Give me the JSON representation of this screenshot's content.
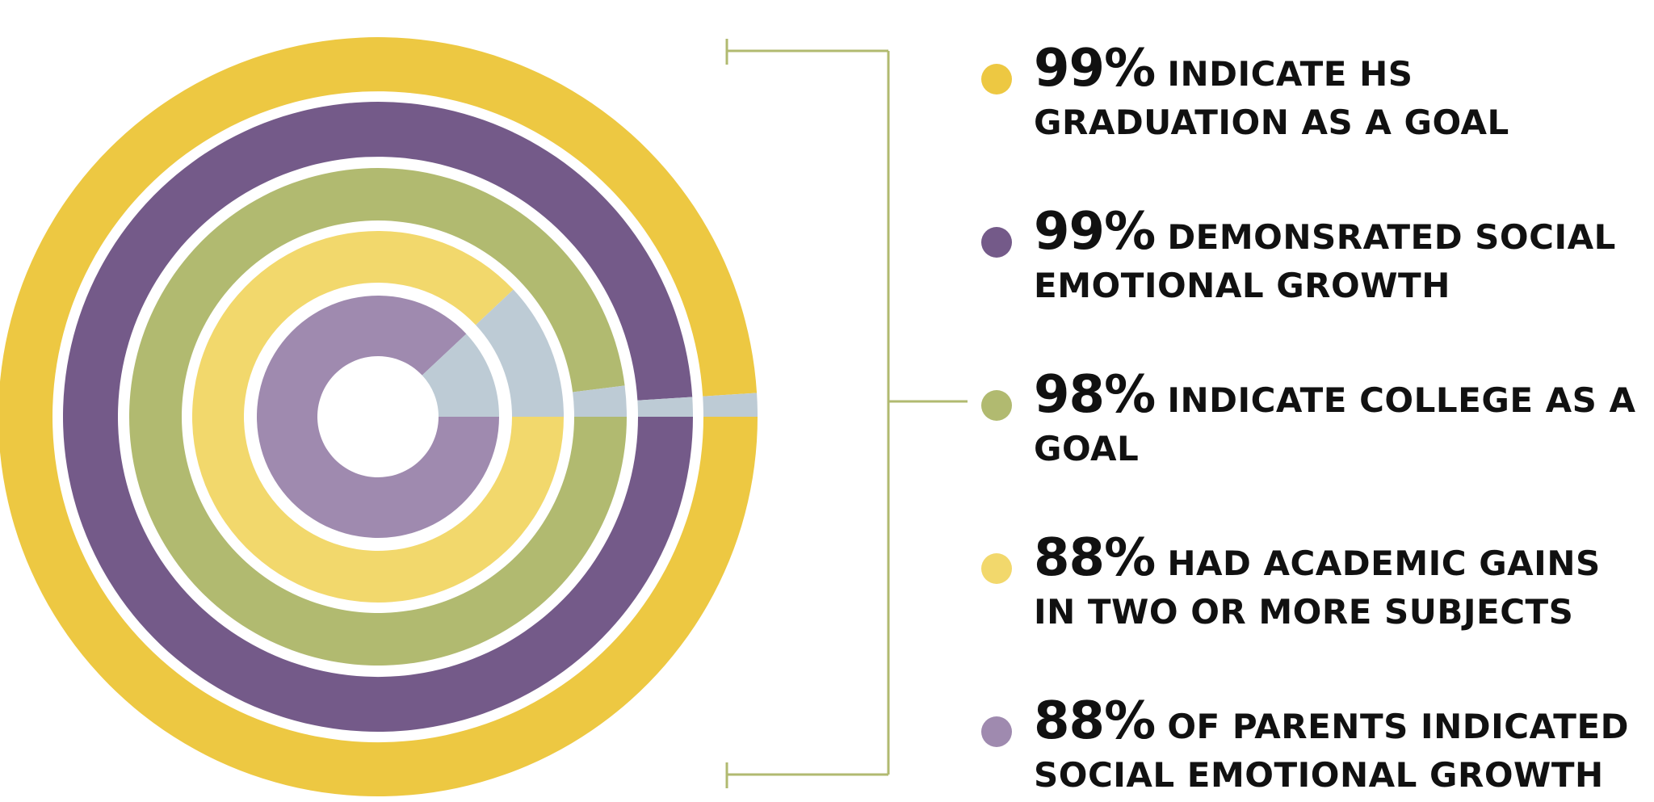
{
  "chart_data": {
    "type": "radial-bar",
    "series": [
      {
        "value": 99,
        "color": "#EDC842",
        "label": "INDICATE HS GRADUATION AS A GOAL"
      },
      {
        "value": 99,
        "color": "#745A89",
        "label": "DEMONSRATED SOCIAL EMOTIONAL GROWTH"
      },
      {
        "value": 98,
        "color": "#B1BA70",
        "label": "INDICATE COLLEGE AS A GOAL"
      },
      {
        "value": 88,
        "color": "#F2D86C",
        "label": "HAD ACADEMIC GAINS IN TWO OR MORE SUBJECTS"
      },
      {
        "value": 88,
        "color": "#9F8AAF",
        "label": "OF PARENTS INDICATED SOCIAL EMOTIONAL GROWTH"
      }
    ],
    "remainder_color": "#BDCBD5",
    "bracket_color": "#B1BA70"
  },
  "legend": [
    {
      "value_text": "99%",
      "label": "INDICATE HS GRADUATION AS A GOAL"
    },
    {
      "value_text": "99%",
      "label": "DEMONSRATED SOCIAL EMOTIONAL GROWTH"
    },
    {
      "value_text": "98%",
      "label": "INDICATE COLLEGE AS A GOAL"
    },
    {
      "value_text": "88%",
      "label": "HAD ACADEMIC GAINS IN TWO OR MORE SUBJECTS"
    },
    {
      "value_text": "88%",
      "label": "OF PARENTS INDICATED SOCIAL EMOTIONAL GROWTH"
    }
  ]
}
